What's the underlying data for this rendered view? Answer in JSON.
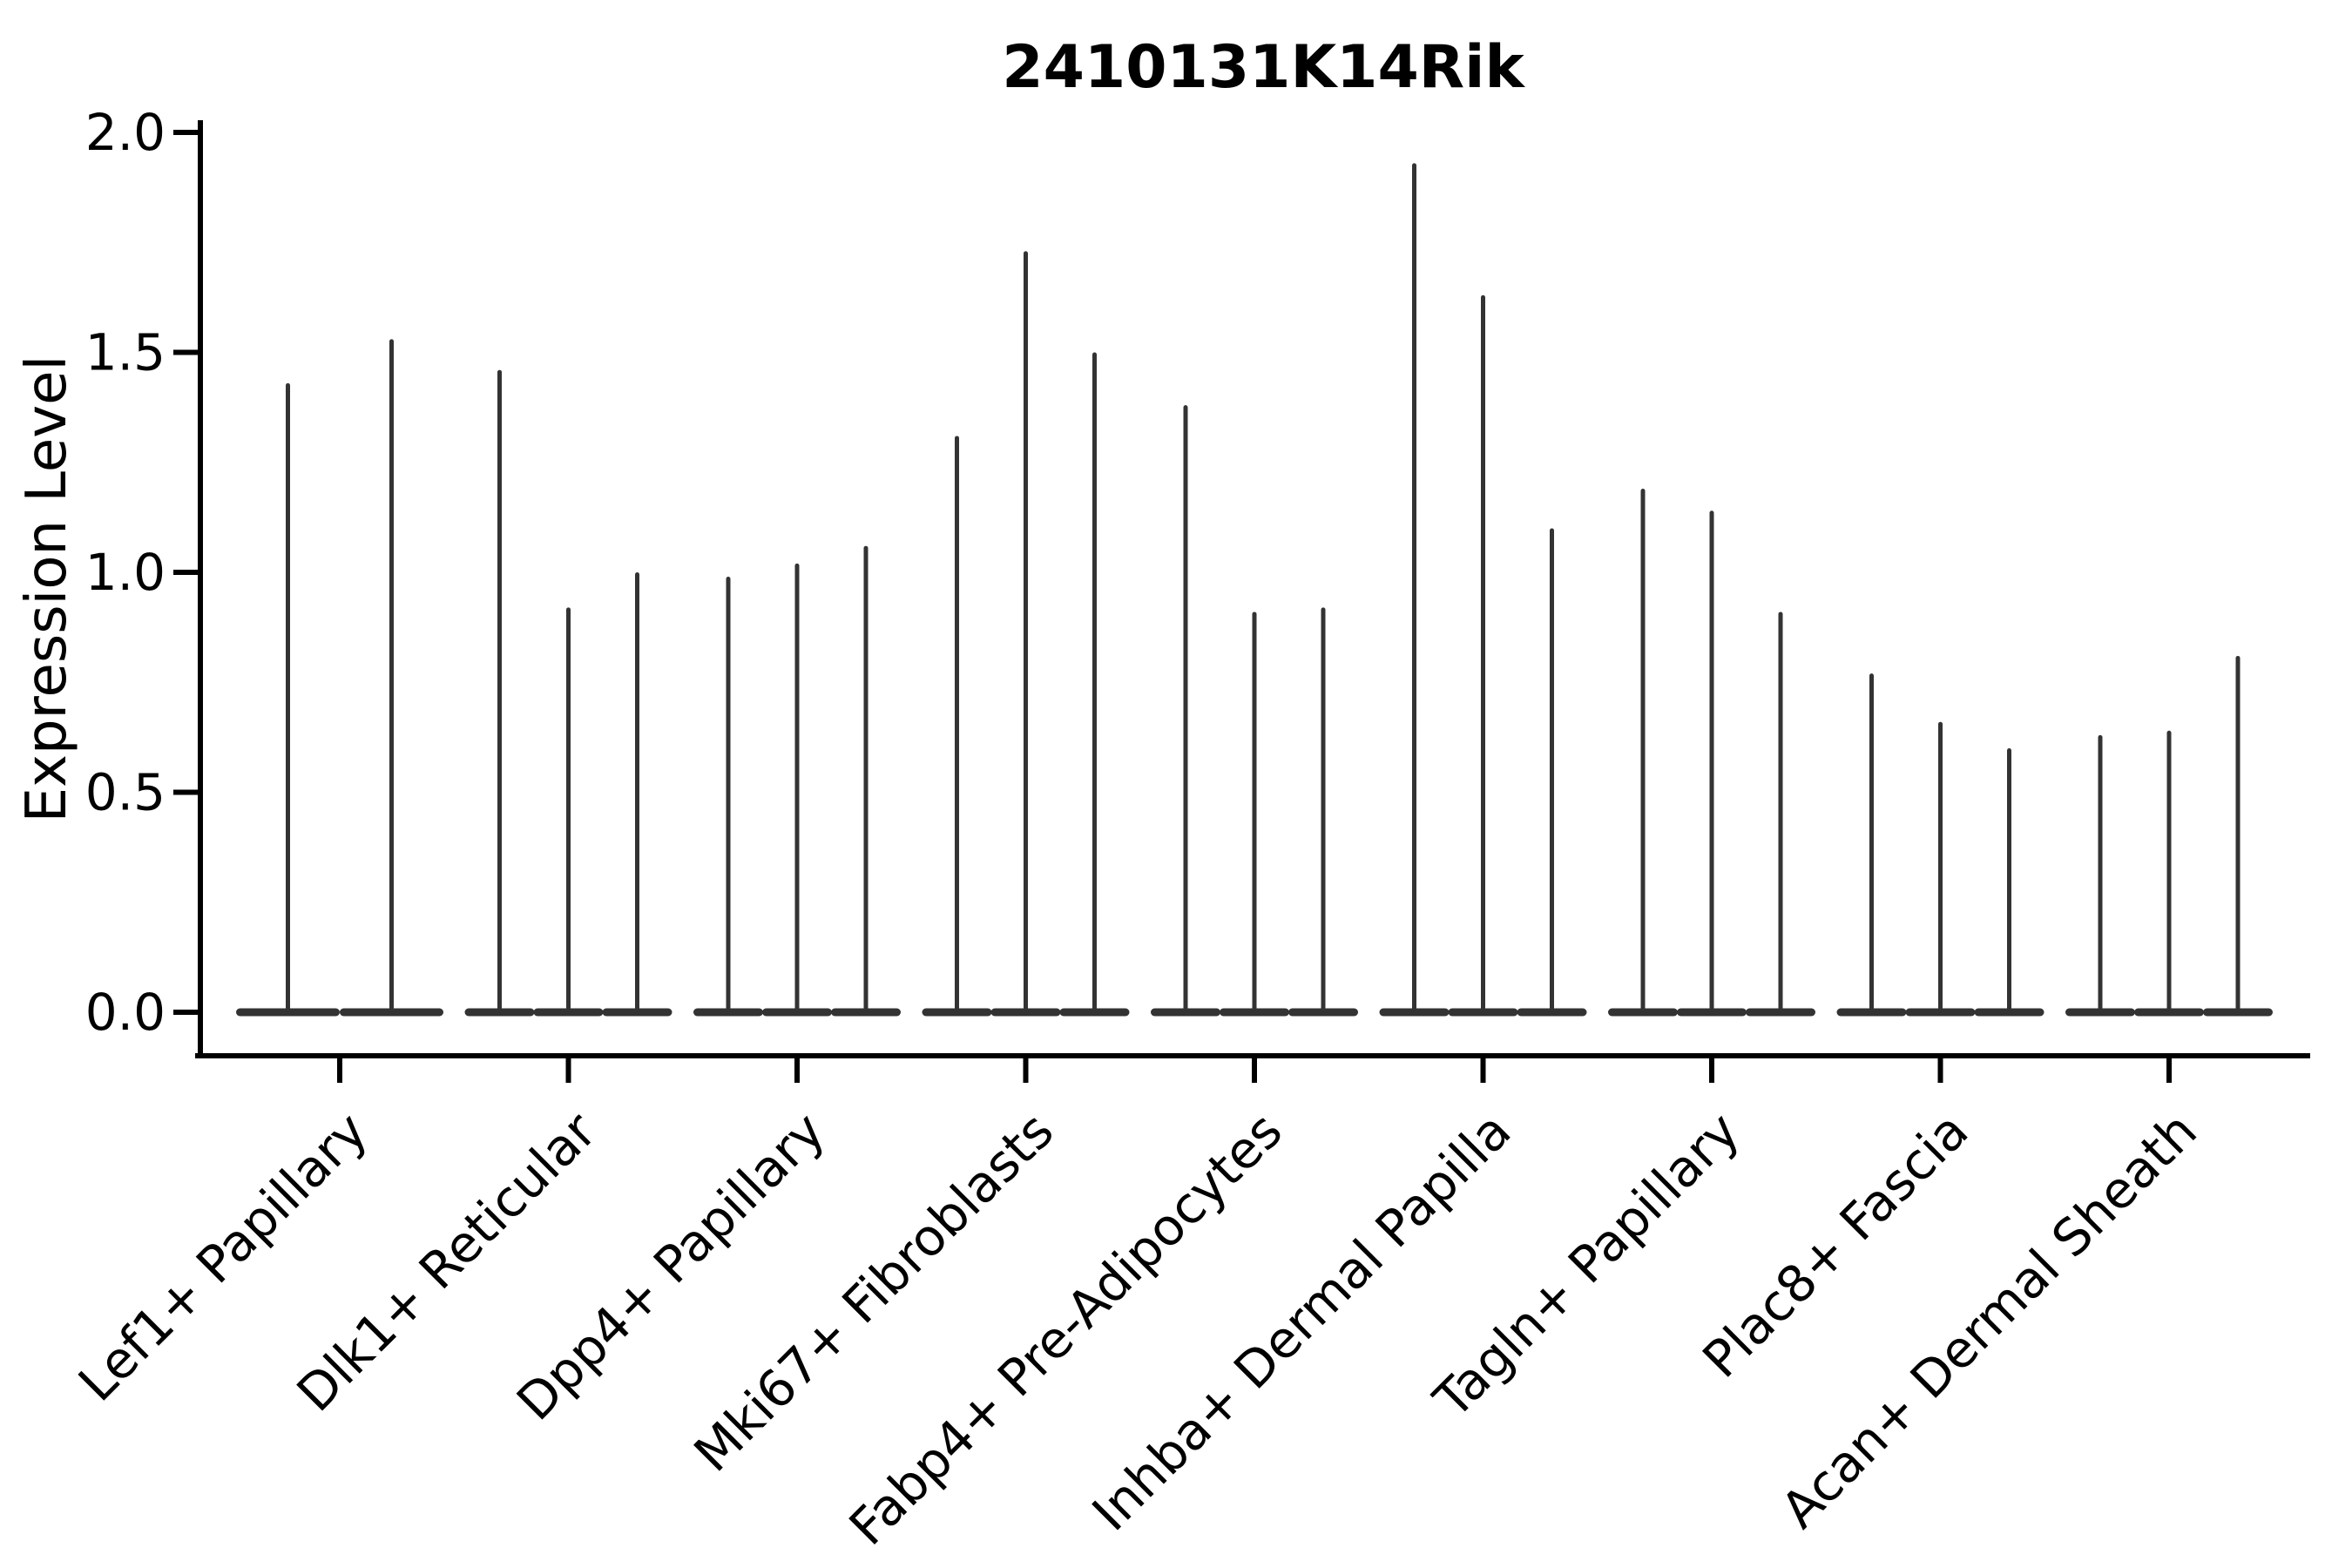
{
  "chart_data": {
    "type": "violin",
    "title": "2410131K14Rik",
    "xlabel": "",
    "ylabel": "Expression Level",
    "ylim": [
      0.0,
      2.0
    ],
    "yticks": [
      "0.0",
      "0.5",
      "1.0",
      "1.5",
      "2.0"
    ],
    "grid": false,
    "legend_position": "none",
    "style_note": "needle-thin dark violins, most density at 0 with narrow spikes up to the max expression value; axes despined on top/right; x labels rotated 45 deg",
    "categories": [
      {
        "label": "Lef1+ Papillary",
        "violin_max_values": [
          1.43,
          1.53
        ]
      },
      {
        "label": "Dlk1+ Reticular",
        "violin_max_values": [
          1.46,
          0.92,
          1.0
        ]
      },
      {
        "label": "Dpp4+ Papillary",
        "violin_max_values": [
          0.99,
          1.02,
          1.06
        ]
      },
      {
        "label": "Mki67+ Fibroblasts",
        "violin_max_values": [
          1.31,
          1.73,
          1.5
        ]
      },
      {
        "label": "Fabp4+ Pre-Adipocytes",
        "violin_max_values": [
          1.38,
          0.91,
          0.92
        ]
      },
      {
        "label": "Inhba+ Dermal Papilla",
        "violin_max_values": [
          1.93,
          1.63,
          1.1
        ]
      },
      {
        "label": "Tagln+ Papillary",
        "violin_max_values": [
          1.19,
          1.14,
          0.91
        ]
      },
      {
        "label": "Plac8+ Fascia",
        "violin_max_values": [
          0.77,
          0.66,
          0.6
        ]
      },
      {
        "label": "Acan+ Dermal Sheath",
        "violin_max_values": [
          0.63,
          0.64,
          0.81
        ]
      }
    ],
    "colors": {
      "violin": "#333333",
      "axis": "#000000",
      "text": "#000000",
      "background": "#ffffff"
    }
  }
}
